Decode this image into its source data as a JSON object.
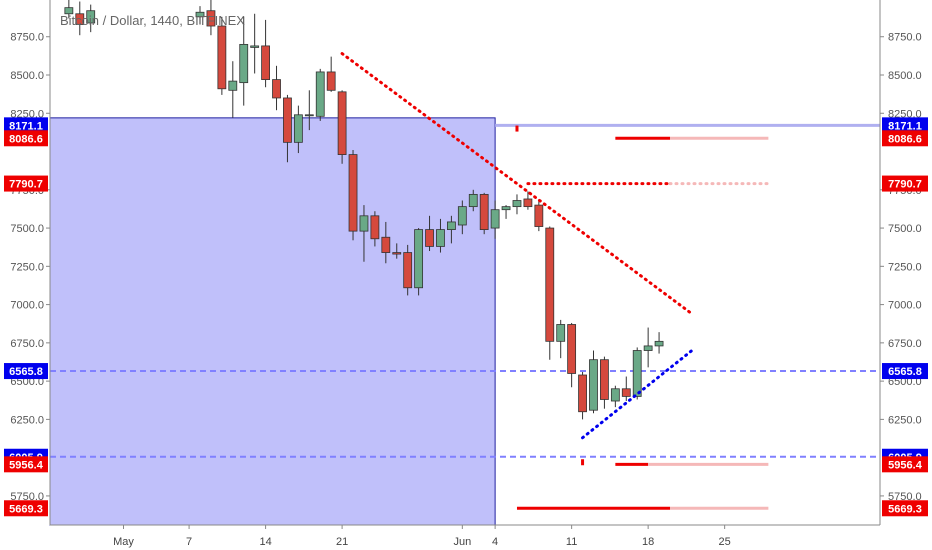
{
  "chart_data": {
    "type": "candlestick",
    "title": "Bitcoin / Dollar, 1440, BITFINEX",
    "ylim": [
      5560,
      8990
    ],
    "y_ticks": [
      5750,
      6250,
      6500,
      6750,
      7000,
      7250,
      7500,
      7750,
      8250,
      8500,
      8750
    ],
    "y_tick_labels": [
      "5750.0",
      "6250.0",
      "6500.0",
      "6750.0",
      "7000.0",
      "7250.0",
      "7500.0",
      "7750.0",
      "8250.0",
      "8500.0",
      "8750.0"
    ],
    "x_ticks": [
      {
        "label": "May",
        "day": 0
      },
      {
        "label": "7",
        "day": 6
      },
      {
        "label": "14",
        "day": 13
      },
      {
        "label": "21",
        "day": 20
      },
      {
        "label": "Jun",
        "day": 31
      },
      {
        "label": "4",
        "day": 34
      },
      {
        "label": "11",
        "day": 41
      },
      {
        "label": "18",
        "day": 48
      },
      {
        "label": "25",
        "day": 55
      }
    ],
    "candles": [
      {
        "day": -5,
        "o": 8900,
        "h": 9000,
        "l": 8870,
        "c": 8940
      },
      {
        "day": -4,
        "o": 8900,
        "h": 8980,
        "l": 8760,
        "c": 8830
      },
      {
        "day": -3,
        "o": 8840,
        "h": 8960,
        "l": 8780,
        "c": 8920
      },
      {
        "day": 7,
        "o": 8880,
        "h": 8950,
        "l": 8830,
        "c": 8910
      },
      {
        "day": 8,
        "o": 8920,
        "h": 8990,
        "l": 8760,
        "c": 8820
      },
      {
        "day": 9,
        "o": 8820,
        "h": 8880,
        "l": 8370,
        "c": 8410
      },
      {
        "day": 10,
        "o": 8400,
        "h": 8590,
        "l": 8220,
        "c": 8460
      },
      {
        "day": 11,
        "o": 8450,
        "h": 8880,
        "l": 8300,
        "c": 8700
      },
      {
        "day": 12,
        "o": 8680,
        "h": 8900,
        "l": 8510,
        "c": 8690
      },
      {
        "day": 13,
        "o": 8690,
        "h": 8860,
        "l": 8420,
        "c": 8470
      },
      {
        "day": 14,
        "o": 8470,
        "h": 8560,
        "l": 8270,
        "c": 8350
      },
      {
        "day": 15,
        "o": 8350,
        "h": 8370,
        "l": 7930,
        "c": 8060
      },
      {
        "day": 16,
        "o": 8060,
        "h": 8300,
        "l": 7990,
        "c": 8240
      },
      {
        "day": 17,
        "o": 8240,
        "h": 8400,
        "l": 8140,
        "c": 8240
      },
      {
        "day": 18,
        "o": 8230,
        "h": 8540,
        "l": 8200,
        "c": 8520
      },
      {
        "day": 19,
        "o": 8520,
        "h": 8620,
        "l": 8390,
        "c": 8400
      },
      {
        "day": 20,
        "o": 8390,
        "h": 8400,
        "l": 7920,
        "c": 7980
      },
      {
        "day": 21,
        "o": 7980,
        "h": 8010,
        "l": 7420,
        "c": 7480
      },
      {
        "day": 22,
        "o": 7480,
        "h": 7650,
        "l": 7280,
        "c": 7580
      },
      {
        "day": 23,
        "o": 7580,
        "h": 7610,
        "l": 7380,
        "c": 7430
      },
      {
        "day": 24,
        "o": 7440,
        "h": 7540,
        "l": 7270,
        "c": 7340
      },
      {
        "day": 25,
        "o": 7340,
        "h": 7400,
        "l": 7300,
        "c": 7330
      },
      {
        "day": 26,
        "o": 7340,
        "h": 7390,
        "l": 7060,
        "c": 7110
      },
      {
        "day": 27,
        "o": 7110,
        "h": 7500,
        "l": 7060,
        "c": 7490
      },
      {
        "day": 28,
        "o": 7490,
        "h": 7580,
        "l": 7350,
        "c": 7380
      },
      {
        "day": 29,
        "o": 7380,
        "h": 7560,
        "l": 7340,
        "c": 7490
      },
      {
        "day": 30,
        "o": 7490,
        "h": 7580,
        "l": 7400,
        "c": 7540
      },
      {
        "day": 31,
        "o": 7520,
        "h": 7680,
        "l": 7460,
        "c": 7640
      },
      {
        "day": 32,
        "o": 7640,
        "h": 7750,
        "l": 7610,
        "c": 7720
      },
      {
        "day": 33,
        "o": 7720,
        "h": 7730,
        "l": 7460,
        "c": 7490
      },
      {
        "day": 34,
        "o": 7500,
        "h": 7680,
        "l": 7430,
        "c": 7620
      },
      {
        "day": 35,
        "o": 7620,
        "h": 7650,
        "l": 7560,
        "c": 7640
      },
      {
        "day": 36,
        "o": 7640,
        "h": 7720,
        "l": 7590,
        "c": 7680
      },
      {
        "day": 37,
        "o": 7690,
        "h": 7740,
        "l": 7620,
        "c": 7640
      },
      {
        "day": 38,
        "o": 7650,
        "h": 7680,
        "l": 7480,
        "c": 7510
      },
      {
        "day": 39,
        "o": 7500,
        "h": 7510,
        "l": 6640,
        "c": 6760
      },
      {
        "day": 40,
        "o": 6760,
        "h": 6900,
        "l": 6650,
        "c": 6870
      },
      {
        "day": 41,
        "o": 6870,
        "h": 6880,
        "l": 6460,
        "c": 6550
      },
      {
        "day": 42,
        "o": 6540,
        "h": 6560,
        "l": 6250,
        "c": 6300
      },
      {
        "day": 43,
        "o": 6310,
        "h": 6700,
        "l": 6290,
        "c": 6640
      },
      {
        "day": 44,
        "o": 6640,
        "h": 6660,
        "l": 6320,
        "c": 6380
      },
      {
        "day": 45,
        "o": 6370,
        "h": 6470,
        "l": 6330,
        "c": 6450
      },
      {
        "day": 46,
        "o": 6450,
        "h": 6530,
        "l": 6370,
        "c": 6400
      },
      {
        "day": 47,
        "o": 6400,
        "h": 6720,
        "l": 6380,
        "c": 6700
      },
      {
        "day": 48,
        "o": 6700,
        "h": 6850,
        "l": 6590,
        "c": 6730
      },
      {
        "day": 49,
        "o": 6730,
        "h": 6820,
        "l": 6680,
        "c": 6760
      }
    ],
    "price_tags": [
      {
        "label": "8171.1",
        "value": 8171.1,
        "color": "#0000ee"
      },
      {
        "label": "8086.6",
        "value": 8086.6,
        "color": "#ee0000"
      },
      {
        "label": "7790.7",
        "value": 7790.7,
        "color": "#ee0000"
      },
      {
        "label": "6565.8",
        "value": 6565.8,
        "color": "#0000ee"
      },
      {
        "label": "6005.9",
        "value": 6005.9,
        "color": "#0000ee"
      },
      {
        "label": "5956.4",
        "value": 5956.4,
        "color": "#ee0000"
      },
      {
        "label": "5669.3",
        "value": 5669.3,
        "color": "#ee0000"
      }
    ],
    "shaded_region": {
      "day_start": -6,
      "day_end": 34,
      "price_top": 8220,
      "price_bottom": 5560,
      "color": "#c0c0fa"
    },
    "solid_levels": [
      {
        "value": 8171.1,
        "day_start": 34,
        "day_end": 59,
        "color": "#b0b0f0"
      }
    ],
    "dashed_levels": [
      {
        "value": 6565.8,
        "day_start": -6,
        "day_end": 59,
        "color": "#8080ff"
      },
      {
        "value": 6005.9,
        "day_start": -6,
        "day_end": 59,
        "color": "#8080ff"
      }
    ],
    "level_segments": [
      {
        "value": 8086.6,
        "day_start": 45,
        "day_end": 50,
        "color": "#ee0000"
      },
      {
        "value": 8086.6,
        "day_start": 50,
        "day_end": 59,
        "color": "#f5b8b8"
      },
      {
        "value": 5956.4,
        "day_start": 45,
        "day_end": 48,
        "color": "#ee0000"
      },
      {
        "value": 5956.4,
        "day_start": 48,
        "day_end": 59,
        "color": "#f5b8b8"
      },
      {
        "value": 5669.3,
        "day_start": 36,
        "day_end": 50,
        "color": "#ee0000"
      },
      {
        "value": 5669.3,
        "day_start": 50,
        "day_end": 59,
        "color": "#f5b8b8"
      }
    ],
    "dotted_lines": [
      {
        "x1": 20,
        "y1": 8640,
        "x2": 52,
        "y2": 6940,
        "color": "#ee0000"
      },
      {
        "x1": 42,
        "y1": 6130,
        "x2": 52,
        "y2": 6700,
        "color": "#0000ee"
      },
      {
        "x1": 37,
        "y1": 7790.7,
        "x2": 50,
        "y2": 7790.7,
        "color": "#ee0000"
      },
      {
        "x1": 50,
        "y1": 7790.7,
        "x2": 59,
        "y2": 7790.7,
        "color": "#f5b8b8"
      }
    ],
    "markers": [
      {
        "day": 36,
        "value": 8150,
        "color": "#ee0000"
      },
      {
        "day": 42,
        "value": 5970,
        "color": "#ee0000"
      }
    ]
  }
}
